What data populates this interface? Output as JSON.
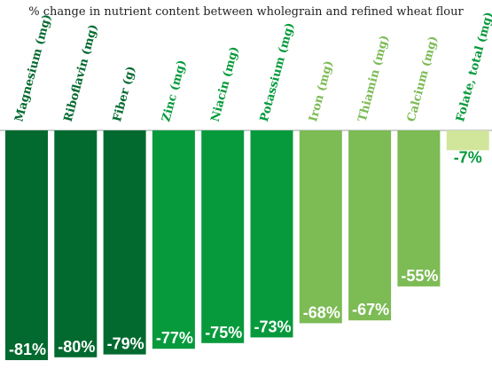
{
  "chart_data": {
    "type": "bar",
    "title": "% change in nutrient content between wholegrain and refined wheat flour",
    "categories": [
      "Magnesium (mg)",
      "Riboflavin (mg)",
      "Fiber (g)",
      "Zinc (mg)",
      "Niacin (mg)",
      "Potassium (mg)",
      "Iron (mg)",
      "Thiamin (mg)",
      "Calcium (mg)",
      "Folate, total (mg)"
    ],
    "values": [
      -81,
      -80,
      -79,
      -77,
      -75,
      -73,
      -68,
      -67,
      -55,
      -7
    ],
    "value_labels": [
      "-81%",
      "-80%",
      "-79%",
      "-77%",
      "-75%",
      "-73%",
      "-68%",
      "-67%",
      "-55%",
      "-7%"
    ],
    "colors": [
      "#036a2f",
      "#036a2f",
      "#036a2f",
      "#079a3c",
      "#079a3c",
      "#079a3c",
      "#7dbb55",
      "#7dbb55",
      "#7dbb55",
      "#d1e69a"
    ],
    "label_colors": [
      "#036a2f",
      "#036a2f",
      "#036a2f",
      "#079a3c",
      "#079a3c",
      "#079a3c",
      "#7dbb55",
      "#7dbb55",
      "#7dbb55",
      "#079a3c"
    ],
    "ylim": [
      -81,
      0
    ],
    "xlabel": "",
    "ylabel": "",
    "grid": false,
    "legend": "none"
  }
}
